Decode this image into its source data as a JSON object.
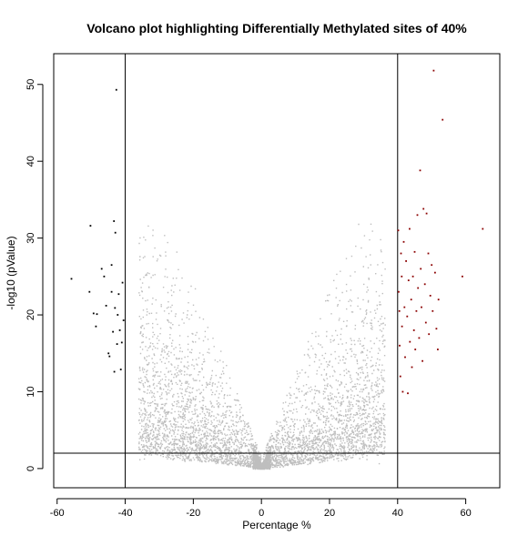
{
  "chart_data": {
    "type": "scatter",
    "title": "Volcano plot highlighting Differentially Methylated sites of 40%",
    "xlabel": "Percentage %",
    "ylabel": "-log10 (pValue)",
    "xlim": [
      -61,
      70
    ],
    "ylim": [
      -2.5,
      54
    ],
    "xticks": [
      -60,
      -40,
      -20,
      0,
      20,
      40,
      60
    ],
    "yticks": [
      0,
      10,
      20,
      30,
      40,
      50
    ],
    "reference_lines": {
      "vertical": [
        -40,
        40
      ],
      "horizontal": [
        2
      ]
    },
    "grid": false,
    "legend": "none",
    "colors": {
      "background_points": "#bebebe",
      "hypomethylated": "#000000",
      "hypermethylated": "#8b0000"
    },
    "series": [
      {
        "values": [
          [
            -55.8,
            24.7
          ],
          [
            -50.2,
            31.6
          ],
          [
            -50.5,
            23.0
          ],
          [
            -49.3,
            20.2
          ],
          [
            -48.6,
            18.5
          ],
          [
            -48.3,
            20.1
          ],
          [
            -46.9,
            26.0
          ],
          [
            -46.2,
            25.0
          ],
          [
            -45.6,
            21.2
          ],
          [
            -44.9,
            15.0
          ],
          [
            -44.6,
            14.6
          ],
          [
            -44.0,
            26.5
          ],
          [
            -44.0,
            23.0
          ],
          [
            -43.6,
            17.8
          ],
          [
            -43.3,
            32.2
          ],
          [
            -43.2,
            12.6
          ],
          [
            -43.0,
            20.9
          ],
          [
            -42.9,
            30.7
          ],
          [
            -42.6,
            49.3
          ],
          [
            -42.4,
            16.2
          ],
          [
            -42.2,
            20.0
          ],
          [
            -41.9,
            22.7
          ],
          [
            -41.6,
            18.0
          ],
          [
            -41.3,
            12.9
          ],
          [
            -41.0,
            16.4
          ],
          [
            -40.8,
            24.2
          ],
          [
            -40.5,
            19.3
          ]
        ]
      },
      {
        "values": [
          [
            40.2,
            31.0
          ],
          [
            40.3,
            23.0
          ],
          [
            40.5,
            20.5
          ],
          [
            40.6,
            16.0
          ],
          [
            40.8,
            12.0
          ],
          [
            41.0,
            28.0
          ],
          [
            41.2,
            25.0
          ],
          [
            41.3,
            18.5
          ],
          [
            41.5,
            10.0
          ],
          [
            41.8,
            29.5
          ],
          [
            42.0,
            21.0
          ],
          [
            42.2,
            14.5
          ],
          [
            42.5,
            27.0
          ],
          [
            42.8,
            19.8
          ],
          [
            43.0,
            9.8
          ],
          [
            43.2,
            24.5
          ],
          [
            43.5,
            31.2
          ],
          [
            43.6,
            16.5
          ],
          [
            44.0,
            22.0
          ],
          [
            44.2,
            13.2
          ],
          [
            44.5,
            25.0
          ],
          [
            44.8,
            18.0
          ],
          [
            45.0,
            28.2
          ],
          [
            45.2,
            15.5
          ],
          [
            45.5,
            20.5
          ],
          [
            45.8,
            33.0
          ],
          [
            46.0,
            23.5
          ],
          [
            46.3,
            17.0
          ],
          [
            46.6,
            38.8
          ],
          [
            46.8,
            26.0
          ],
          [
            47.0,
            21.0
          ],
          [
            47.3,
            14.0
          ],
          [
            47.6,
            33.8
          ],
          [
            48.0,
            24.0
          ],
          [
            48.3,
            19.0
          ],
          [
            48.5,
            33.2
          ],
          [
            49.0,
            28.0
          ],
          [
            49.2,
            17.5
          ],
          [
            49.6,
            22.5
          ],
          [
            50.0,
            26.5
          ],
          [
            50.3,
            20.5
          ],
          [
            50.6,
            51.8
          ],
          [
            51.0,
            25.5
          ],
          [
            51.4,
            18.2
          ],
          [
            51.8,
            15.5
          ],
          [
            52.0,
            22.0
          ],
          [
            53.2,
            45.4
          ],
          [
            59.0,
            25.0
          ],
          [
            65.0,
            31.2
          ]
        ]
      }
    ]
  }
}
